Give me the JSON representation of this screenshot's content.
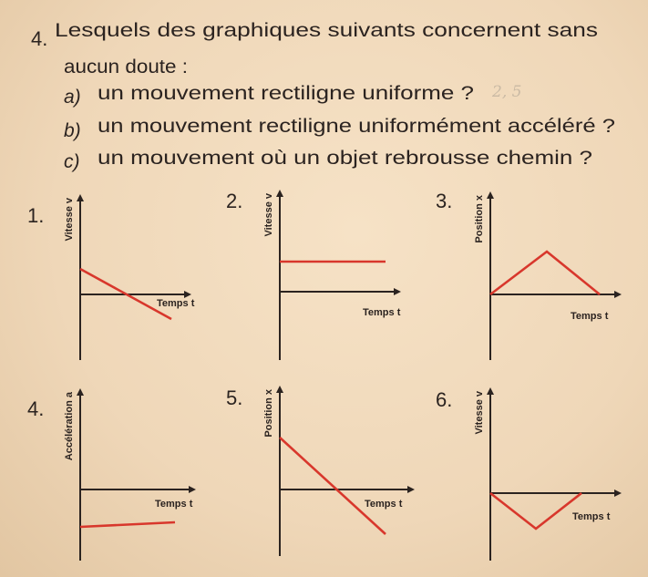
{
  "question": {
    "number": "4.",
    "lines": [
      "Lesquels des graphiques suivants concernent sans",
      "aucun doute :"
    ],
    "items": [
      {
        "letter": "a)",
        "text": "un mouvement rectiligne uniforme ?"
      },
      {
        "letter": "b)",
        "text": "un mouvement rectiligne uniformément accéléré ?"
      },
      {
        "letter": "c)",
        "text": "un mouvement où un objet rebrousse chemin ?"
      }
    ],
    "pencil_note": "2, 5"
  },
  "colors": {
    "text": "#2b2320",
    "curve": "#d8372c",
    "paper": "#f3dcc0"
  },
  "graphs": [
    {
      "label": "1.",
      "ylabel": "Vitesse v",
      "xlabel": "Temps t",
      "curve": [
        [
          0,
          2.8
        ],
        [
          10,
          -2.7
        ]
      ]
    },
    {
      "label": "2.",
      "ylabel": "Vitesse v",
      "xlabel": "Temps t",
      "curve": [
        [
          0,
          3.3
        ],
        [
          11.6,
          3.3
        ]
      ]
    },
    {
      "label": "3.",
      "ylabel": "Position x",
      "xlabel": "Temps t",
      "curve": [
        [
          0,
          0
        ],
        [
          6.2,
          4.7
        ],
        [
          12,
          0
        ]
      ]
    },
    {
      "label": "4.",
      "ylabel": "Accélération a",
      "xlabel": "Temps t",
      "curve": [
        [
          0,
          -4.1
        ],
        [
          10.4,
          -3.6
        ]
      ]
    },
    {
      "label": "5.",
      "ylabel": "Position x",
      "xlabel": "Temps t",
      "curve": [
        [
          0,
          5.7
        ],
        [
          11.6,
          -4.9
        ]
      ]
    },
    {
      "label": "6.",
      "ylabel": "Vitesse v",
      "xlabel": "Temps t",
      "curve": [
        [
          0,
          0
        ],
        [
          5,
          -3.9
        ],
        [
          10,
          0
        ]
      ]
    }
  ]
}
